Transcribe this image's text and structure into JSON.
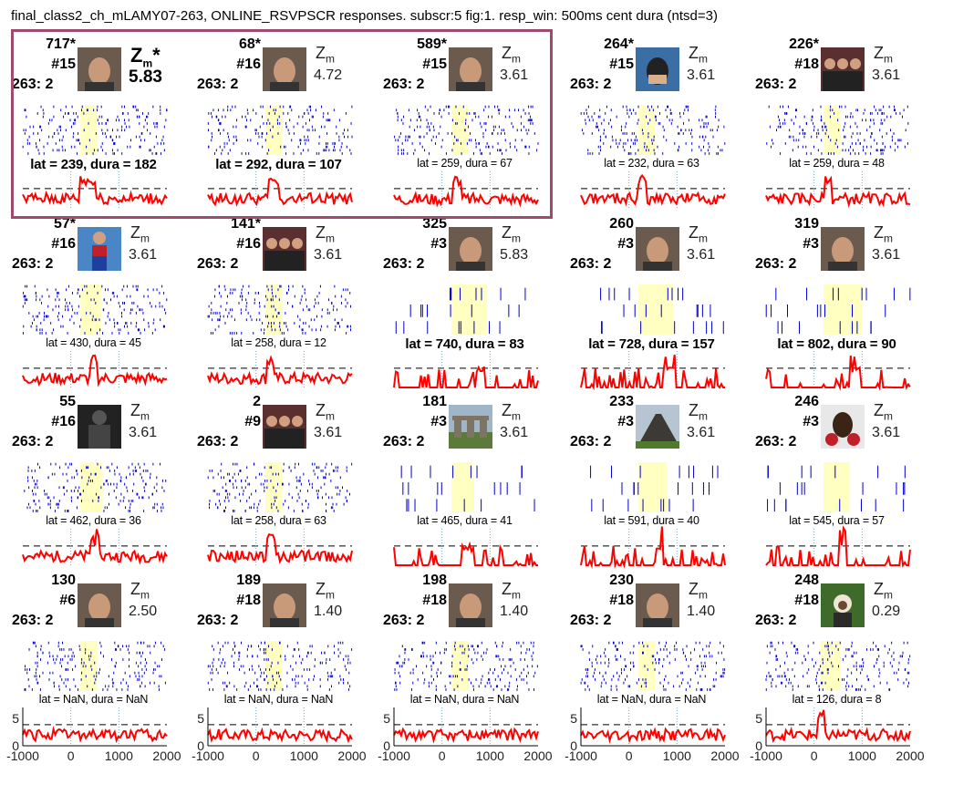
{
  "figure": {
    "title": "final_class2_ch_mLAMY07-263, ONLINE_RSVPSCR responses. subscr:5 fig:1. resp_win: 500ms cent dura (ntsd=3)",
    "z_symbol": "Z",
    "z_subscript": "m"
  },
  "colors": {
    "raster": "#0000cc",
    "psth": "#ff0000",
    "window": "#ffffc2",
    "threshold": "#000000",
    "marker": "#6aaed6",
    "highlight": "#a04a6e"
  },
  "chart_data": {
    "type": "raster-psth-grid",
    "x_axis": {
      "range": [
        -1000,
        2000
      ],
      "ticks": [
        -1000,
        0,
        1000,
        2000
      ]
    },
    "y_axis": {
      "ticks": [
        0,
        5
      ]
    },
    "panels": [
      {
        "id": "717*",
        "count": "#15",
        "channel": "263: 2",
        "zscore": "5.83",
        "star": true,
        "lat_text": "lat = 239, dura = 182",
        "bold": true,
        "icon": "face-icon",
        "seed": 1,
        "win": [
          239,
          421
        ],
        "sparse": false
      },
      {
        "id": "68*",
        "count": "#16",
        "channel": "263: 2",
        "zscore": "4.72",
        "star": false,
        "lat_text": "lat = 292, dura = 107",
        "bold": true,
        "icon": "face-icon",
        "seed": 2,
        "win": [
          292,
          399
        ],
        "sparse": false
      },
      {
        "id": "589*",
        "count": "#15",
        "channel": "263: 2",
        "zscore": "3.61",
        "star": false,
        "lat_text": "lat = 259, dura =  67",
        "bold": false,
        "icon": "face-icon",
        "seed": 3,
        "win": [
          259,
          326
        ],
        "sparse": false
      },
      {
        "id": "264*",
        "count": "#15",
        "channel": "263: 2",
        "zscore": "3.61",
        "star": false,
        "lat_text": "lat = 232, dura =  63",
        "bold": false,
        "icon": "masked-hero-icon",
        "seed": 4,
        "win": [
          232,
          295
        ],
        "sparse": false
      },
      {
        "id": "226*",
        "count": "#18",
        "channel": "263: 2",
        "zscore": "3.61",
        "star": false,
        "lat_text": "lat = 259, dura =  48",
        "bold": false,
        "icon": "group-photo-icon",
        "seed": 5,
        "win": [
          259,
          307
        ],
        "sparse": false
      },
      {
        "id": "57*",
        "count": "#16",
        "channel": "263: 2",
        "zscore": "3.61",
        "star": false,
        "lat_text": "lat = 430, dura =  45",
        "bold": false,
        "icon": "hero-costume-icon",
        "seed": 6,
        "win": [
          430,
          475
        ],
        "sparse": false
      },
      {
        "id": "141*",
        "count": "#16",
        "channel": "263: 2",
        "zscore": "3.61",
        "star": false,
        "lat_text": "lat = 258, dura =  12",
        "bold": false,
        "icon": "group-photo-icon",
        "seed": 7,
        "win": [
          258,
          270
        ],
        "sparse": false
      },
      {
        "id": "325",
        "count": "#3",
        "channel": "263: 2",
        "zscore": "5.83",
        "star": false,
        "lat_text": "lat = 740, dura =  83",
        "bold": true,
        "icon": "face-icon",
        "seed": 8,
        "win": [
          740,
          823
        ],
        "sparse": true
      },
      {
        "id": "260",
        "count": "#3",
        "channel": "263: 2",
        "zscore": "3.61",
        "star": false,
        "lat_text": "lat = 728, dura = 157",
        "bold": true,
        "icon": "face-icon",
        "seed": 9,
        "win": [
          728,
          885
        ],
        "sparse": true
      },
      {
        "id": "319",
        "count": "#3",
        "channel": "263: 2",
        "zscore": "3.61",
        "star": false,
        "lat_text": "lat = 802, dura =  90",
        "bold": true,
        "icon": "face-icon",
        "seed": 10,
        "win": [
          802,
          892
        ],
        "sparse": true
      },
      {
        "id": "55",
        "count": "#16",
        "channel": "263: 2",
        "zscore": "3.61",
        "star": false,
        "lat_text": "lat = 462, dura =  36",
        "bold": false,
        "icon": "costume-icon",
        "seed": 11,
        "win": [
          462,
          498
        ],
        "sparse": false
      },
      {
        "id": "2",
        "count": "#9",
        "channel": "263: 2",
        "zscore": "3.61",
        "star": false,
        "lat_text": "lat = 258, dura =  63",
        "bold": false,
        "icon": "group-photo-icon",
        "seed": 12,
        "win": [
          258,
          321
        ],
        "sparse": false
      },
      {
        "id": "181",
        "count": "#3",
        "channel": "263: 2",
        "zscore": "3.61",
        "star": false,
        "lat_text": "lat = 465, dura =  41",
        "bold": false,
        "icon": "stone-monument-icon",
        "seed": 13,
        "win": [
          465,
          506
        ],
        "sparse": true
      },
      {
        "id": "233",
        "count": "#3",
        "channel": "263: 2",
        "zscore": "3.61",
        "star": false,
        "lat_text": "lat = 591, dura =  40",
        "bold": false,
        "icon": "volcano-icon",
        "seed": 14,
        "win": [
          591,
          631
        ],
        "sparse": true
      },
      {
        "id": "246",
        "count": "#3",
        "channel": "263: 2",
        "zscore": "3.61",
        "star": false,
        "lat_text": "lat = 545, dura =  57",
        "bold": false,
        "icon": "boxer-icon",
        "seed": 15,
        "win": [
          545,
          602
        ],
        "sparse": true
      },
      {
        "id": "130",
        "count": "#6",
        "channel": "263: 2",
        "zscore": "2.50",
        "star": false,
        "lat_text": "lat = NaN, dura = NaN",
        "bold": false,
        "icon": "face-icon",
        "seed": 16,
        "win": null,
        "sparse": false
      },
      {
        "id": "189",
        "count": "#18",
        "channel": "263: 2",
        "zscore": "1.40",
        "star": false,
        "lat_text": "lat = NaN, dura = NaN",
        "bold": false,
        "icon": "face-icon",
        "seed": 17,
        "win": null,
        "sparse": false
      },
      {
        "id": "198",
        "count": "#18",
        "channel": "263: 2",
        "zscore": "1.40",
        "star": false,
        "lat_text": "lat = NaN, dura = NaN",
        "bold": false,
        "icon": "face-icon",
        "seed": 18,
        "win": null,
        "sparse": false
      },
      {
        "id": "230",
        "count": "#18",
        "channel": "263: 2",
        "zscore": "1.40",
        "star": false,
        "lat_text": "lat = NaN, dura = NaN",
        "bold": false,
        "icon": "face-icon",
        "seed": 19,
        "win": null,
        "sparse": false
      },
      {
        "id": "248",
        "count": "#18",
        "channel": "263: 2",
        "zscore": "0.29",
        "star": false,
        "lat_text": "lat = 126, dura =   8",
        "bold": false,
        "icon": "monkey-icon",
        "seed": 20,
        "win": [
          126,
          134
        ],
        "sparse": false
      }
    ]
  }
}
